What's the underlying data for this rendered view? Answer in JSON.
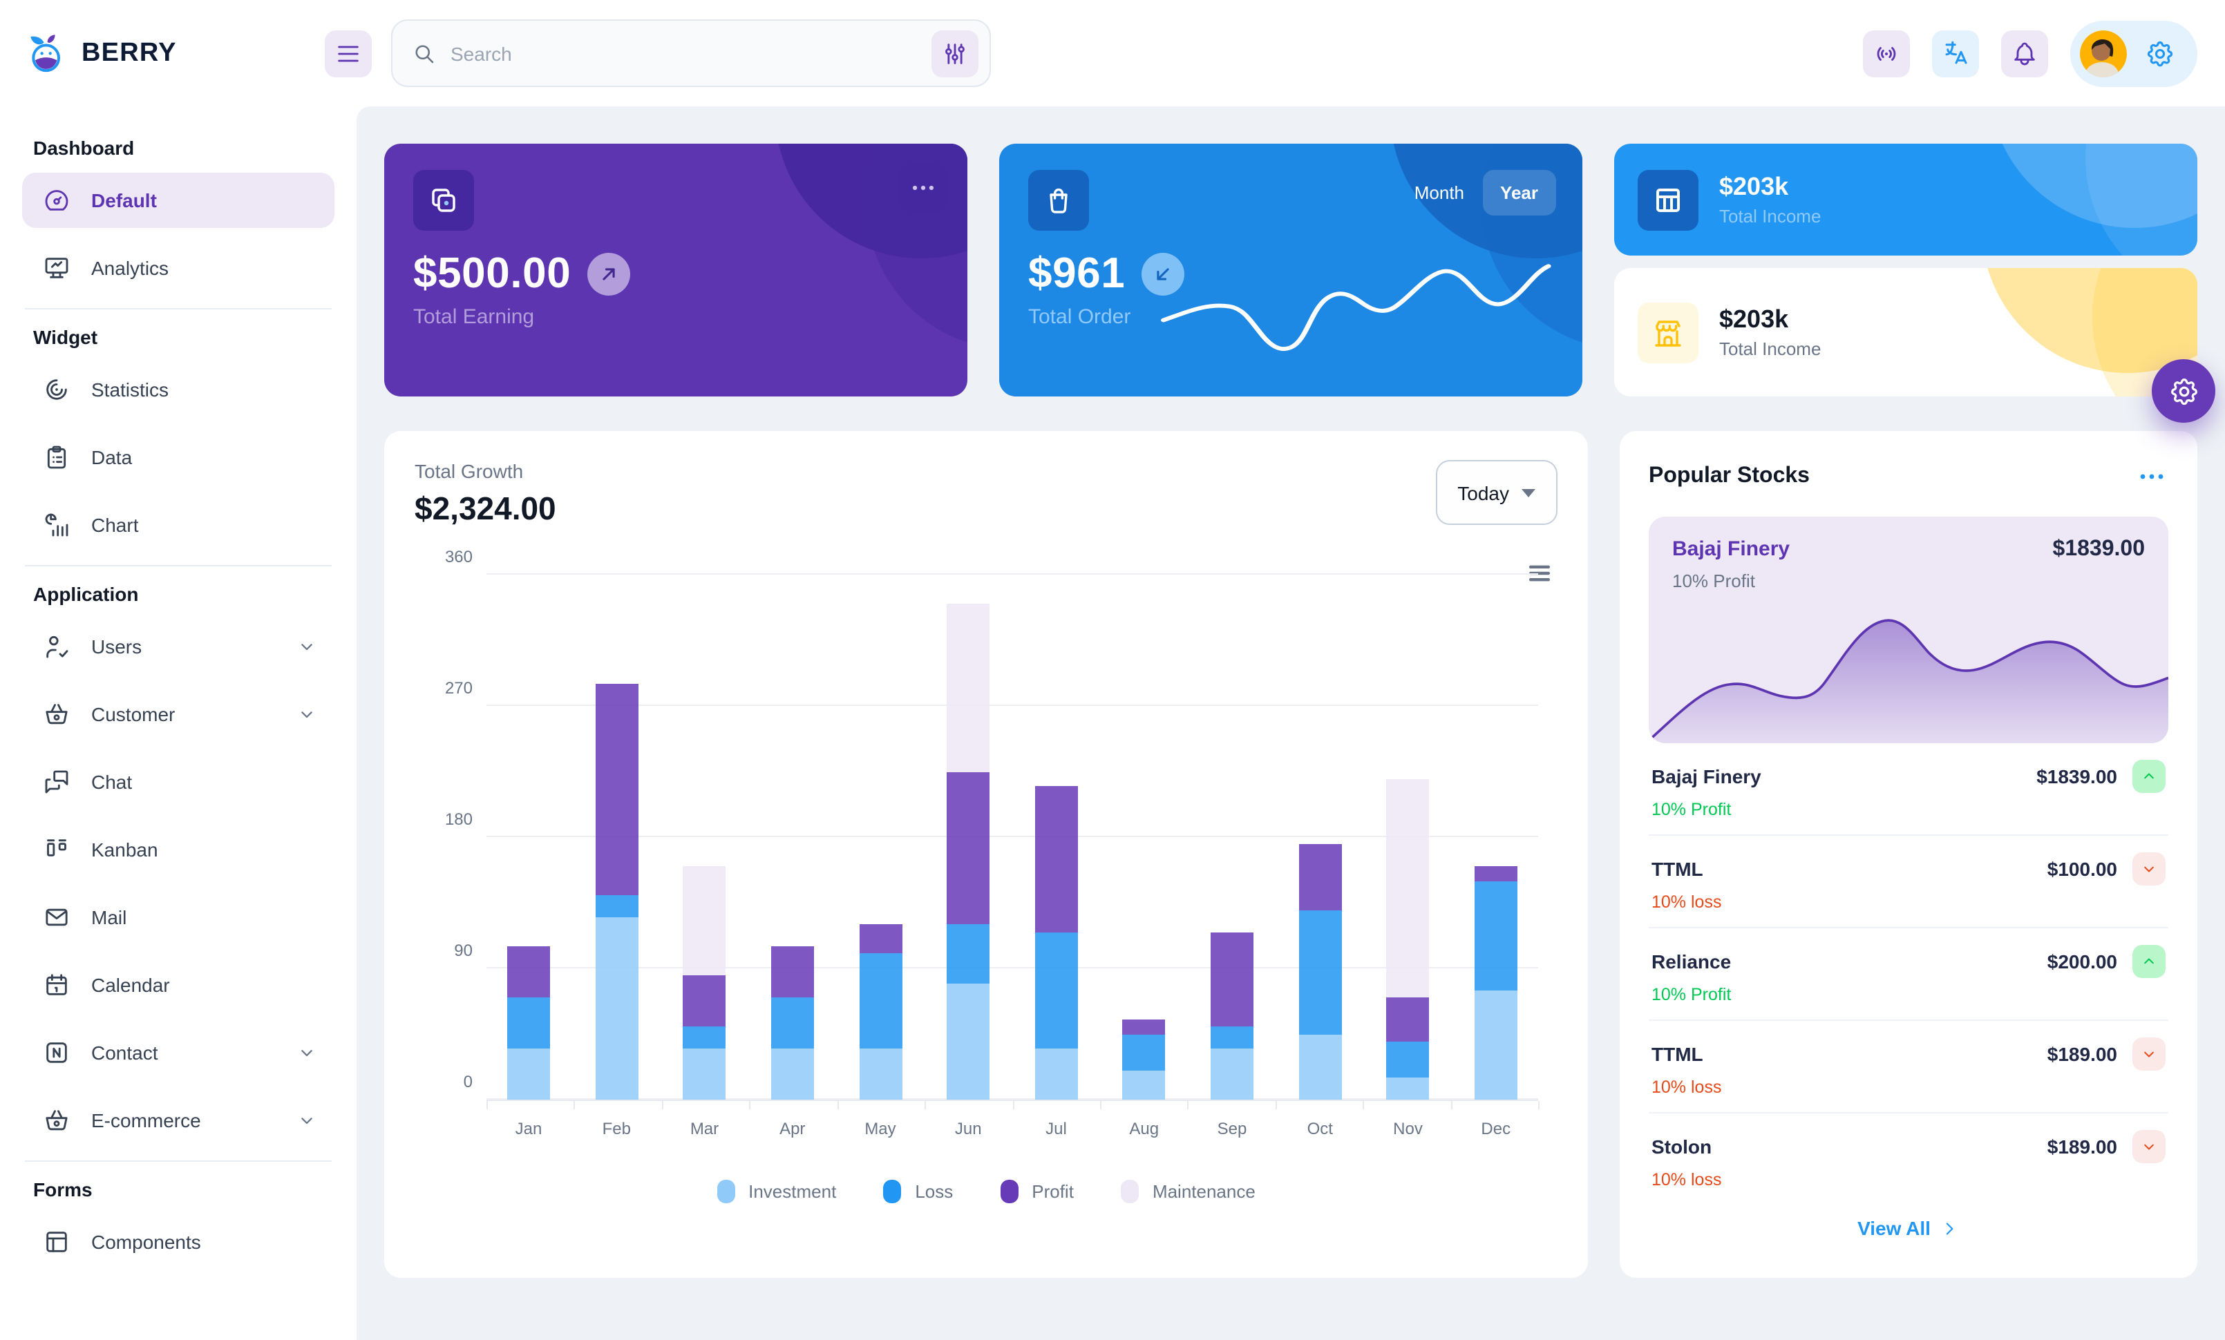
{
  "header": {
    "brand": "BERRY",
    "search_placeholder": "Search"
  },
  "sidebar": {
    "sections": [
      {
        "title": "Dashboard",
        "items": [
          {
            "label": "Default",
            "icon": "gauge",
            "active": true
          },
          {
            "label": "Analytics",
            "icon": "analytics"
          }
        ]
      },
      {
        "title": "Widget",
        "items": [
          {
            "label": "Statistics",
            "icon": "arcs"
          },
          {
            "label": "Data",
            "icon": "clipboard"
          },
          {
            "label": "Chart",
            "icon": "chartinfo"
          }
        ]
      },
      {
        "title": "Application",
        "items": [
          {
            "label": "Users",
            "icon": "usercheck",
            "expandable": true
          },
          {
            "label": "Customer",
            "icon": "basket",
            "expandable": true
          },
          {
            "label": "Chat",
            "icon": "messages"
          },
          {
            "label": "Kanban",
            "icon": "kanban"
          },
          {
            "label": "Mail",
            "icon": "mail"
          },
          {
            "label": "Calendar",
            "icon": "calendar"
          },
          {
            "label": "Contact",
            "icon": "nfc",
            "expandable": true
          },
          {
            "label": "E-commerce",
            "icon": "basket",
            "expandable": true
          }
        ]
      },
      {
        "title": "Forms",
        "items": [
          {
            "label": "Components",
            "icon": "box"
          }
        ]
      }
    ]
  },
  "cards": {
    "earning": {
      "value": "$500.00",
      "label": "Total Earning"
    },
    "order": {
      "value": "$961",
      "label": "Total Order",
      "toggle_month": "Month",
      "toggle_year": "Year",
      "active_toggle": "Year"
    },
    "income_blue": {
      "value": "$203k",
      "label": "Total Income"
    },
    "income_light": {
      "value": "$203k",
      "label": "Total Income"
    }
  },
  "growth": {
    "label": "Total Growth",
    "value": "$2,324.00",
    "range": "Today",
    "chart_data": {
      "type": "bar",
      "stacked": true,
      "title": "Total Growth",
      "categories": [
        "Jan",
        "Feb",
        "Mar",
        "Apr",
        "May",
        "Jun",
        "Jul",
        "Aug",
        "Sep",
        "Oct",
        "Nov",
        "Dec"
      ],
      "series": [
        {
          "name": "Investment",
          "color": "#90caf9",
          "values": [
            35,
            125,
            35,
            35,
            35,
            80,
            35,
            20,
            35,
            45,
            15,
            75
          ]
        },
        {
          "name": "Loss",
          "color": "#2196f3",
          "values": [
            35,
            15,
            15,
            35,
            65,
            40,
            80,
            25,
            15,
            85,
            25,
            75
          ]
        },
        {
          "name": "Profit",
          "color": "#673ab7",
          "values": [
            35,
            145,
            35,
            35,
            20,
            105,
            100,
            10,
            65,
            45,
            30,
            10
          ]
        },
        {
          "name": "Maintenance",
          "color": "#ede7f6",
          "values": [
            0,
            0,
            75,
            0,
            0,
            115,
            0,
            0,
            0,
            0,
            150,
            0
          ]
        }
      ],
      "ylim": [
        0,
        360
      ],
      "yticks": [
        0,
        90,
        180,
        270,
        360
      ],
      "grid": true,
      "legend_position": "bottom"
    }
  },
  "stocks": {
    "title": "Popular Stocks",
    "featured": {
      "name": "Bajaj Finery",
      "price": "$1839.00",
      "change": "10% Profit"
    },
    "items": [
      {
        "name": "Bajaj Finery",
        "price": "$1839.00",
        "change": "10% Profit",
        "direction": "up"
      },
      {
        "name": "TTML",
        "price": "$100.00",
        "change": "10% loss",
        "direction": "down"
      },
      {
        "name": "Reliance",
        "price": "$200.00",
        "change": "10% Profit",
        "direction": "up"
      },
      {
        "name": "TTML",
        "price": "$189.00",
        "change": "10% loss",
        "direction": "down"
      },
      {
        "name": "Stolon",
        "price": "$189.00",
        "change": "10% loss",
        "direction": "down"
      }
    ],
    "view_all": "View All"
  },
  "colors": {
    "page_bg": "#eef2f6",
    "purple_dark": "#5e35b1",
    "purple_800": "#4527a0",
    "purple_main": "#673ab7",
    "purple_light": "#ede7f6",
    "blue_dark": "#1e88e5",
    "blue_800": "#1565c0",
    "blue_main": "#2196f3",
    "blue_light": "#90caf9",
    "warning": "#ffc107",
    "success": "#00c853",
    "error": "#e64a19"
  }
}
